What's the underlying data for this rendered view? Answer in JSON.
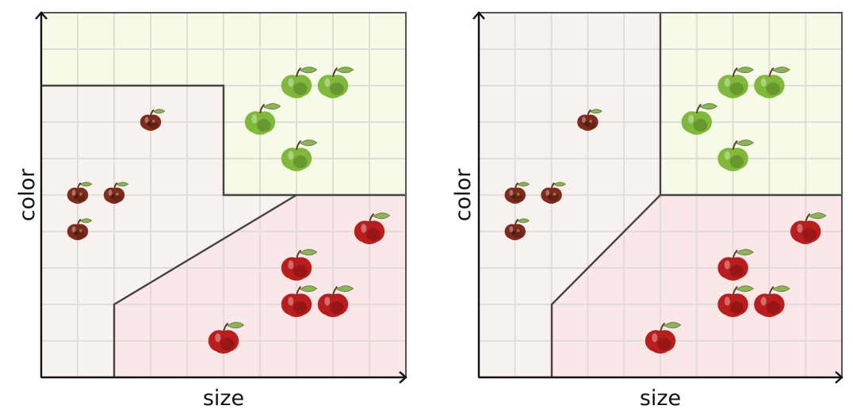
{
  "colors": {
    "green_region": "#f5fbe6",
    "rot_region": "#f7f1ef",
    "red_region": "#fbe6e8",
    "fresh_red": "#b91d1d",
    "rotten": "#7e2a1c",
    "green_apple": "#7fb83a"
  },
  "panels": [
    {
      "ylabel": "color",
      "xlabel": "size",
      "apples": [
        {
          "type": "rotten",
          "gx": 3,
          "gy": 7
        },
        {
          "type": "rotten",
          "gx": 1,
          "gy": 5
        },
        {
          "type": "rotten",
          "gx": 2,
          "gy": 5
        },
        {
          "type": "rotten",
          "gx": 1,
          "gy": 4
        },
        {
          "type": "green",
          "gx": 7,
          "gy": 8
        },
        {
          "type": "green",
          "gx": 8,
          "gy": 8
        },
        {
          "type": "green",
          "gx": 6,
          "gy": 7
        },
        {
          "type": "green",
          "gx": 7,
          "gy": 6
        },
        {
          "type": "red",
          "gx": 9,
          "gy": 4
        },
        {
          "type": "red",
          "gx": 7,
          "gy": 3
        },
        {
          "type": "red",
          "gx": 7,
          "gy": 2
        },
        {
          "type": "red",
          "gx": 8,
          "gy": 2
        },
        {
          "type": "red",
          "gx": 5,
          "gy": 1
        }
      ]
    },
    {
      "ylabel": "color",
      "xlabel": "size",
      "apples": [
        {
          "type": "rotten",
          "gx": 3,
          "gy": 7
        },
        {
          "type": "rotten",
          "gx": 1,
          "gy": 5
        },
        {
          "type": "rotten",
          "gx": 2,
          "gy": 5
        },
        {
          "type": "rotten",
          "gx": 1,
          "gy": 4
        },
        {
          "type": "green",
          "gx": 7,
          "gy": 8
        },
        {
          "type": "green",
          "gx": 8,
          "gy": 8
        },
        {
          "type": "green",
          "gx": 6,
          "gy": 7
        },
        {
          "type": "green",
          "gx": 7,
          "gy": 6
        },
        {
          "type": "red",
          "gx": 9,
          "gy": 4
        },
        {
          "type": "red",
          "gx": 7,
          "gy": 3
        },
        {
          "type": "red",
          "gx": 7,
          "gy": 2
        },
        {
          "type": "red",
          "gx": 8,
          "gy": 2
        },
        {
          "type": "red",
          "gx": 5,
          "gy": 1
        }
      ]
    }
  ]
}
